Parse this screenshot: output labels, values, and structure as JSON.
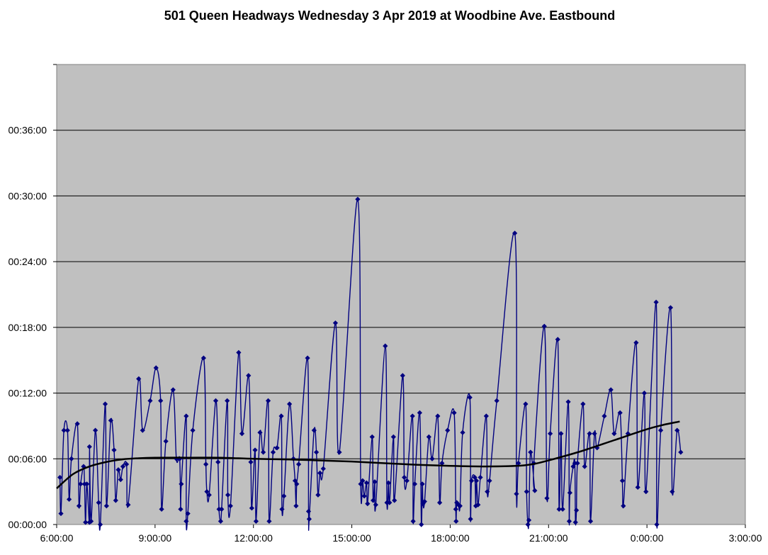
{
  "chart_data": {
    "type": "line",
    "title": "501 Queen Headways Wednesday 3 Apr 2019 at Woodbine Ave. Eastbound",
    "xlabel": "",
    "ylabel": "",
    "x_ticks": [
      "6:00:00",
      "9:00:00",
      "12:00:00",
      "15:00:00",
      "18:00:00",
      "21:00:00",
      "0:00:00",
      "3:00:00"
    ],
    "y_ticks": [
      "00:00:00",
      "00:06:00",
      "00:12:00",
      "00:18:00",
      "00:24:00",
      "00:30:00",
      "00:36:00"
    ],
    "xlim_hours": [
      6,
      27
    ],
    "ylim_minutes": [
      0,
      42
    ],
    "grid": "horizontal",
    "plot_background": "#C0C0C0",
    "series": [
      {
        "color": "#000080",
        "marker": "diamond",
        "smooth": true,
        "points": [
          [
            6.1,
            4.3
          ],
          [
            6.13,
            1
          ],
          [
            6.22,
            8.6
          ],
          [
            6.33,
            8.6
          ],
          [
            6.38,
            2.3
          ],
          [
            6.45,
            6
          ],
          [
            6.63,
            9.2
          ],
          [
            6.68,
            1.7
          ],
          [
            6.73,
            3.7
          ],
          [
            6.82,
            5.3
          ],
          [
            6.85,
            3.7
          ],
          [
            6.88,
            0.2
          ],
          [
            6.92,
            3.7
          ],
          [
            7.0,
            0.2
          ],
          [
            7.0,
            7.1
          ],
          [
            7.05,
            0.3
          ],
          [
            7.18,
            8.6
          ],
          [
            7.28,
            2
          ],
          [
            7.33,
            0
          ],
          [
            7.48,
            11
          ],
          [
            7.52,
            1.7
          ],
          [
            7.65,
            9.5
          ],
          [
            7.75,
            6.8
          ],
          [
            7.8,
            2.2
          ],
          [
            7.88,
            5
          ],
          [
            7.95,
            4.1
          ],
          [
            8.02,
            5.3
          ],
          [
            8.13,
            5.5
          ],
          [
            8.18,
            1.8
          ],
          [
            8.5,
            13.3
          ],
          [
            8.62,
            8.6
          ],
          [
            8.85,
            11.3
          ],
          [
            9.03,
            14.3
          ],
          [
            9.17,
            11.3
          ],
          [
            9.2,
            1.4
          ],
          [
            9.33,
            7.6
          ],
          [
            9.55,
            12.3
          ],
          [
            9.65,
            6
          ],
          [
            9.75,
            6
          ],
          [
            9.78,
            1.4
          ],
          [
            9.8,
            3.7
          ],
          [
            9.95,
            9.9
          ],
          [
            9.95,
            0.3
          ],
          [
            10.0,
            1
          ],
          [
            10.15,
            8.6
          ],
          [
            10.48,
            15.2
          ],
          [
            10.55,
            5.5
          ],
          [
            10.58,
            3
          ],
          [
            10.65,
            2.7
          ],
          [
            10.85,
            11.3
          ],
          [
            10.92,
            5.7
          ],
          [
            10.95,
            1.4
          ],
          [
            11.0,
            0.3
          ],
          [
            11.03,
            1.4
          ],
          [
            11.2,
            11.3
          ],
          [
            11.22,
            2.7
          ],
          [
            11.3,
            1.7
          ],
          [
            11.55,
            15.7
          ],
          [
            11.65,
            8.3
          ],
          [
            11.85,
            13.6
          ],
          [
            11.92,
            5.7
          ],
          [
            11.95,
            1.5
          ],
          [
            12.05,
            6.8
          ],
          [
            12.08,
            0.3
          ],
          [
            12.2,
            8.4
          ],
          [
            12.3,
            6.6
          ],
          [
            12.45,
            11.3
          ],
          [
            12.48,
            0.3
          ],
          [
            12.6,
            6.6
          ],
          [
            12.72,
            7
          ],
          [
            12.85,
            9.9
          ],
          [
            12.87,
            1.4
          ],
          [
            12.93,
            2.6
          ],
          [
            13.1,
            11
          ],
          [
            13.22,
            6
          ],
          [
            13.27,
            4
          ],
          [
            13.3,
            1.7
          ],
          [
            13.32,
            3.7
          ],
          [
            13.38,
            5.5
          ],
          [
            13.65,
            15.2
          ],
          [
            13.68,
            1.2
          ],
          [
            13.7,
            0.5
          ],
          [
            13.85,
            8.6
          ],
          [
            13.92,
            6.6
          ],
          [
            13.97,
            2.7
          ],
          [
            14.03,
            4.7
          ],
          [
            14.13,
            5.1
          ],
          [
            14.5,
            18.4
          ],
          [
            14.62,
            6.6
          ],
          [
            15.18,
            29.7
          ],
          [
            15.27,
            3.7
          ],
          [
            15.33,
            4
          ],
          [
            15.38,
            2.6
          ],
          [
            15.45,
            3.8
          ],
          [
            15.48,
            1.9
          ],
          [
            15.62,
            8
          ],
          [
            15.65,
            2.2
          ],
          [
            15.7,
            3.9
          ],
          [
            15.73,
            1.8
          ],
          [
            16.02,
            16.3
          ],
          [
            16.07,
            2
          ],
          [
            16.12,
            3.8
          ],
          [
            16.15,
            2
          ],
          [
            16.27,
            8
          ],
          [
            16.3,
            2.2
          ],
          [
            16.55,
            13.6
          ],
          [
            16.6,
            4.3
          ],
          [
            16.68,
            4
          ],
          [
            16.85,
            9.9
          ],
          [
            16.87,
            0.3
          ],
          [
            16.92,
            3.7
          ],
          [
            17.07,
            10.2
          ],
          [
            17.12,
            0
          ],
          [
            17.15,
            3.7
          ],
          [
            17.17,
            1.9
          ],
          [
            17.22,
            2.1
          ],
          [
            17.35,
            8
          ],
          [
            17.45,
            6
          ],
          [
            17.62,
            9.9
          ],
          [
            17.68,
            2
          ],
          [
            17.75,
            5.6
          ],
          [
            17.92,
            8.6
          ],
          [
            18.12,
            10.2
          ],
          [
            18.17,
            1.4
          ],
          [
            18.18,
            0.3
          ],
          [
            18.2,
            2
          ],
          [
            18.25,
            1.8
          ],
          [
            18.3,
            1.7
          ],
          [
            18.38,
            8.4
          ],
          [
            18.6,
            11.6
          ],
          [
            18.62,
            0.5
          ],
          [
            18.65,
            4
          ],
          [
            18.75,
            4.3
          ],
          [
            18.78,
            1.7
          ],
          [
            18.8,
            4
          ],
          [
            18.85,
            1.8
          ],
          [
            18.92,
            4.3
          ],
          [
            19.1,
            9.9
          ],
          [
            19.13,
            3
          ],
          [
            19.2,
            4
          ],
          [
            19.42,
            11.3
          ],
          [
            19.97,
            26.6
          ],
          [
            20.02,
            2.8
          ],
          [
            20.08,
            5.6
          ],
          [
            20.3,
            11
          ],
          [
            20.33,
            3
          ],
          [
            20.37,
            0
          ],
          [
            20.4,
            0.4
          ],
          [
            20.45,
            6.6
          ],
          [
            20.58,
            3.1
          ],
          [
            20.55,
            5.6
          ],
          [
            20.87,
            18.1
          ],
          [
            20.95,
            2.4
          ],
          [
            21.05,
            8.3
          ],
          [
            21.28,
            16.9
          ],
          [
            21.32,
            1.4
          ],
          [
            21.38,
            8.3
          ],
          [
            21.43,
            1.4
          ],
          [
            21.6,
            11.2
          ],
          [
            21.63,
            0.3
          ],
          [
            21.65,
            2.9
          ],
          [
            21.75,
            5.3
          ],
          [
            21.8,
            5.6
          ],
          [
            21.82,
            0.2
          ],
          [
            21.85,
            1.3
          ],
          [
            21.88,
            5.6
          ],
          [
            22.05,
            11
          ],
          [
            22.1,
            5.3
          ],
          [
            22.25,
            8.3
          ],
          [
            22.28,
            0.3
          ],
          [
            22.4,
            8.3
          ],
          [
            22.48,
            7
          ],
          [
            22.7,
            9.9
          ],
          [
            22.9,
            12.3
          ],
          [
            23.0,
            8.3
          ],
          [
            23.18,
            10.2
          ],
          [
            23.25,
            4
          ],
          [
            23.28,
            1.7
          ],
          [
            23.42,
            8.3
          ],
          [
            23.67,
            16.6
          ],
          [
            23.72,
            3.4
          ],
          [
            23.92,
            12
          ],
          [
            23.97,
            3
          ],
          [
            24.28,
            20.3
          ],
          [
            24.3,
            0
          ],
          [
            24.42,
            8.6
          ],
          [
            24.72,
            19.8
          ],
          [
            24.77,
            3
          ],
          [
            24.92,
            8.6
          ],
          [
            25.03,
            6.6
          ]
        ]
      },
      {
        "color": "#000000",
        "marker": "none",
        "trend": true,
        "points": [
          [
            6.0,
            3.3
          ],
          [
            6.5,
            4.6
          ],
          [
            7.0,
            5.3
          ],
          [
            7.5,
            5.7
          ],
          [
            8.0,
            5.95
          ],
          [
            8.5,
            6.05
          ],
          [
            9.0,
            6.1
          ],
          [
            10.0,
            6.1
          ],
          [
            11.0,
            6.1
          ],
          [
            12.0,
            6.0
          ],
          [
            13.0,
            5.95
          ],
          [
            14.0,
            5.85
          ],
          [
            15.0,
            5.75
          ],
          [
            16.0,
            5.6
          ],
          [
            17.0,
            5.45
          ],
          [
            18.0,
            5.35
          ],
          [
            19.0,
            5.3
          ],
          [
            20.0,
            5.35
          ],
          [
            20.5,
            5.5
          ],
          [
            21.0,
            5.85
          ],
          [
            22.0,
            6.7
          ],
          [
            23.0,
            7.7
          ],
          [
            24.0,
            8.7
          ],
          [
            24.5,
            9.1
          ],
          [
            25.0,
            9.4
          ]
        ]
      }
    ]
  }
}
